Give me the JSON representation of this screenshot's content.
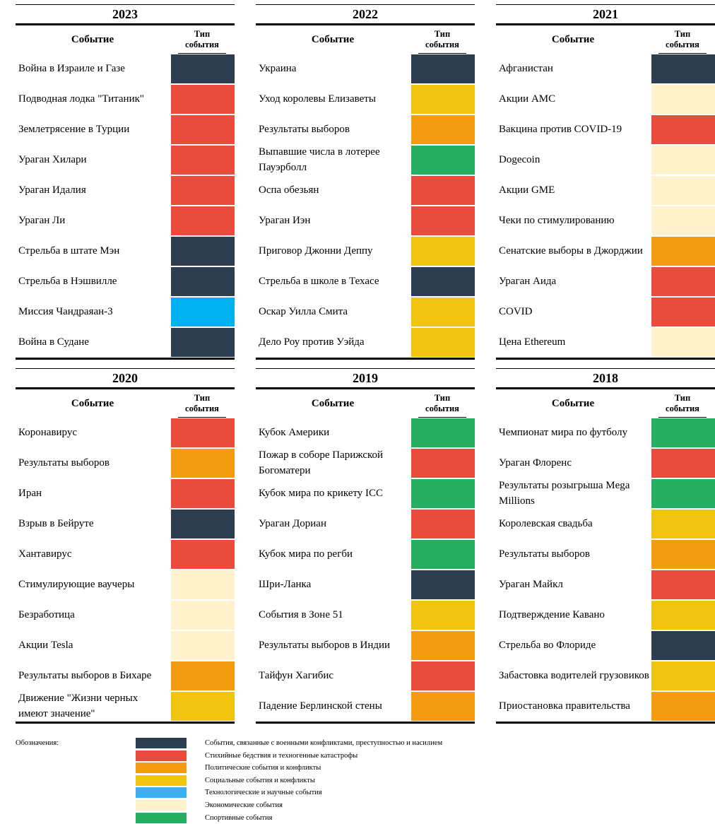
{
  "columns": [
    "Событие",
    "Тип события"
  ],
  "panels": [
    {
      "year": "2023",
      "rows": [
        {
          "event": "Война в Израиле и Газе",
          "color": "#2d3e50"
        },
        {
          "event": "Подводная лодка \"Титаник\"",
          "color": "#e74c3c"
        },
        {
          "event": "Землетрясение в Турции",
          "color": "#e74c3c"
        },
        {
          "event": "Ураган Хилари",
          "color": "#e74c3c"
        },
        {
          "event": "Ураган Идалия",
          "color": "#e74c3c"
        },
        {
          "event": "Ураган Ли",
          "color": "#e74c3c"
        },
        {
          "event": "Стрельба в штате Мэн",
          "color": "#2d3e50"
        },
        {
          "event": "Стрельба в Нэшвилле",
          "color": "#2d3e50"
        },
        {
          "event": "Миссия Чандраяан-3",
          "color": "#00b0f0"
        },
        {
          "event": "Война в Судане",
          "color": "#2d3e50"
        }
      ]
    },
    {
      "year": "2022",
      "rows": [
        {
          "event": "Украина",
          "color": "#2d3e50"
        },
        {
          "event": "Уход королевы Елизаветы",
          "color": "#f1c40f"
        },
        {
          "event": "Результаты выборов",
          "color": "#f39c12"
        },
        {
          "event": "Выпавшие числа в лотерее Пауэрболл",
          "color": "#27ae60"
        },
        {
          "event": "Оспа обезьян",
          "color": "#e74c3c"
        },
        {
          "event": "Ураган Иэн",
          "color": "#e74c3c"
        },
        {
          "event": "Приговор Джонни Деппу",
          "color": "#f1c40f"
        },
        {
          "event": "Стрельба в школе в Техасе",
          "color": "#2d3e50"
        },
        {
          "event": "Оскар Уилла Смита",
          "color": "#f1c40f"
        },
        {
          "event": "Дело Роу против Уэйда",
          "color": "#f1c40f"
        }
      ]
    },
    {
      "year": "2021",
      "rows": [
        {
          "event": "Афганистан",
          "color": "#2d3e50"
        },
        {
          "event": "Акции AMC",
          "color": "#fff2cc"
        },
        {
          "event": "Вакцина против COVID-19",
          "color": "#e74c3c"
        },
        {
          "event": "Dogecoin",
          "color": "#fff2cc"
        },
        {
          "event": "Акции GME",
          "color": "#fff2cc"
        },
        {
          "event": "Чеки по стимулированию",
          "color": "#fff2cc"
        },
        {
          "event": "Сенатские выборы в Джорджии",
          "color": "#f39c12"
        },
        {
          "event": "Ураган Аида",
          "color": "#e74c3c"
        },
        {
          "event": "COVID",
          "color": "#e74c3c"
        },
        {
          "event": "Цена Ethereum",
          "color": "#fff2cc"
        }
      ]
    },
    {
      "year": "2020",
      "rows": [
        {
          "event": "Коронавирус",
          "color": "#e74c3c"
        },
        {
          "event": "Результаты выборов",
          "color": "#f39c12"
        },
        {
          "event": "Иран",
          "color": "#e74c3c"
        },
        {
          "event": "Взрыв в Бейруте",
          "color": "#2d3e50"
        },
        {
          "event": "Хантавирус",
          "color": "#e74c3c"
        },
        {
          "event": "Стимулирующие ваучеры",
          "color": "#fff2cc"
        },
        {
          "event": "Безработица",
          "color": "#fff2cc"
        },
        {
          "event": "Акции Tesla",
          "color": "#fff2cc"
        },
        {
          "event": "Результаты выборов в Бихаре",
          "color": "#f39c12"
        },
        {
          "event": "Движение \"Жизни черных имеют значение\"",
          "color": "#f1c40f"
        }
      ]
    },
    {
      "year": "2019",
      "rows": [
        {
          "event": "Кубок Америки",
          "color": "#27ae60"
        },
        {
          "event": "Пожар в соборе Парижской Богоматери",
          "color": "#e74c3c"
        },
        {
          "event": "Кубок мира по крикету ICC",
          "color": "#27ae60"
        },
        {
          "event": "Ураган Дориан",
          "color": "#e74c3c"
        },
        {
          "event": "Кубок мира по регби",
          "color": "#27ae60"
        },
        {
          "event": "Шри-Ланка",
          "color": "#2d3e50"
        },
        {
          "event": "События в Зоне 51",
          "color": "#f1c40f"
        },
        {
          "event": "Результаты выборов в Индии",
          "color": "#f39c12"
        },
        {
          "event": "Тайфун Хагибис",
          "color": "#e74c3c"
        },
        {
          "event": "Падение Берлинской стены",
          "color": "#f39c12"
        }
      ]
    },
    {
      "year": "2018",
      "rows": [
        {
          "event": "Чемпионат мира по футболу",
          "color": "#27ae60"
        },
        {
          "event": "Ураган Флоренс",
          "color": "#e74c3c"
        },
        {
          "event": "Результаты розыгрыша Mega Millions",
          "color": "#27ae60"
        },
        {
          "event": "Королевская свадьба",
          "color": "#f1c40f"
        },
        {
          "event": "Результаты выборов",
          "color": "#f39c12"
        },
        {
          "event": "Ураган Майкл",
          "color": "#e74c3c"
        },
        {
          "event": "Подтверждение Кавано",
          "color": "#f1c40f"
        },
        {
          "event": "Стрельба во Флориде",
          "color": "#2d3e50"
        },
        {
          "event": "Забастовка водителей грузовиков",
          "color": "#f1c40f"
        },
        {
          "event": "Приостановка правительства",
          "color": "#f39c12"
        }
      ]
    }
  ],
  "legend": {
    "title": "Обозначения:",
    "items": [
      {
        "color": "#2d3e50",
        "label": "События, связанные с военными конфликтами, преступностью и насилием"
      },
      {
        "color": "#e74c3c",
        "label": "Стихийные бедствия и техногенные катастрофы"
      },
      {
        "color": "#f39c12",
        "label": "Политические события и конфликты"
      },
      {
        "color": "#f1c40f",
        "label": "Социальные события и конфликты"
      },
      {
        "color": "#3aaff0",
        "label": "Технологические и научные события"
      },
      {
        "color": "#fff2cc",
        "label": "Экономические события"
      },
      {
        "color": "#27ae60",
        "label": "Спортивные события"
      }
    ]
  }
}
